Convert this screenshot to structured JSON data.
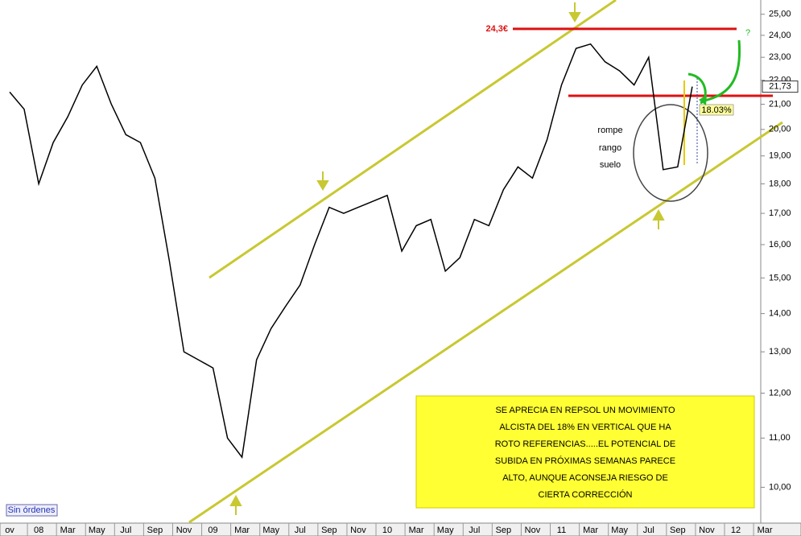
{
  "chart_data": {
    "type": "line",
    "categories": [
      "ov",
      null,
      "08",
      null,
      "Mar",
      null,
      "May",
      null,
      "Jul",
      null,
      "Sep",
      null,
      "Nov",
      null,
      "09",
      null,
      "Mar",
      null,
      "May",
      null,
      "Jul",
      null,
      "Sep",
      null,
      "Nov",
      null,
      "10",
      null,
      "Mar",
      null,
      "May",
      null,
      "Jul",
      null,
      "Sep",
      null,
      "Nov",
      null,
      "11",
      null,
      "Mar",
      null,
      "May",
      null,
      "Jul",
      null,
      "Sep",
      null,
      "Nov",
      null,
      "12",
      null,
      "Mar"
    ],
    "series": [
      {
        "color": "#000000",
        "values": [
          21.5,
          20.8,
          18.0,
          19.5,
          20.5,
          21.8,
          22.6,
          21.0,
          19.8,
          19.5,
          18.2,
          15.5,
          13.0,
          12.8,
          12.6,
          11.0,
          10.6,
          12.8,
          13.6,
          14.2,
          14.8,
          16.0,
          17.2,
          17.0,
          17.2,
          17.4,
          17.6,
          15.8,
          16.6,
          16.8,
          15.2,
          15.6,
          16.8,
          16.6,
          17.8,
          18.6,
          18.2,
          19.6,
          21.8,
          23.4,
          23.6,
          22.8,
          22.4,
          21.8,
          23.0,
          18.5,
          18.6,
          21.73,
          null,
          null,
          null,
          null,
          null
        ]
      }
    ],
    "log_scale": true,
    "ylim": [
      9.3,
      25.5
    ],
    "yticks": [
      {
        "value": 10,
        "label": "10,00"
      },
      {
        "value": 11,
        "label": "11,00"
      },
      {
        "value": 12,
        "label": "12,00"
      },
      {
        "value": 13,
        "label": "13,00"
      },
      {
        "value": 14,
        "label": "14,00"
      },
      {
        "value": 15,
        "label": "15,00"
      },
      {
        "value": 16,
        "label": "16,00"
      },
      {
        "value": 17,
        "label": "17,00"
      },
      {
        "value": 18,
        "label": "18,00"
      },
      {
        "value": 19,
        "label": "19,00"
      },
      {
        "value": 20,
        "label": "20,00"
      },
      {
        "value": 21,
        "label": "21,00"
      },
      {
        "value": 22,
        "label": "22,00"
      },
      {
        "value": 23,
        "label": "23,00"
      },
      {
        "value": 24,
        "label": "24,00"
      },
      {
        "value": 25,
        "label": "25,00"
      }
    ],
    "last_price": {
      "value": 21.73,
      "label": "21,73"
    },
    "level": {
      "value": 24.3,
      "label": "24,3€"
    },
    "notes": [
      "rompe",
      "rango",
      "suelo"
    ],
    "percent_label": "18.03%",
    "question": "?",
    "status": "Sin órdenes",
    "comment": [
      "SE APRECIA EN REPSOL UN MOVIMIENTO",
      "ALCISTA DEL 18% EN VERTICAL QUE HA",
      "ROTO REFERENCIAS.....EL POTENCIAL DE",
      "SUBIDA EN PRÓXIMAS SEMANAS PARECE",
      "ALTO, AUNQUE ACONSEJA RIESGO DE",
      "CIERTA CORRECCIÓN"
    ]
  }
}
